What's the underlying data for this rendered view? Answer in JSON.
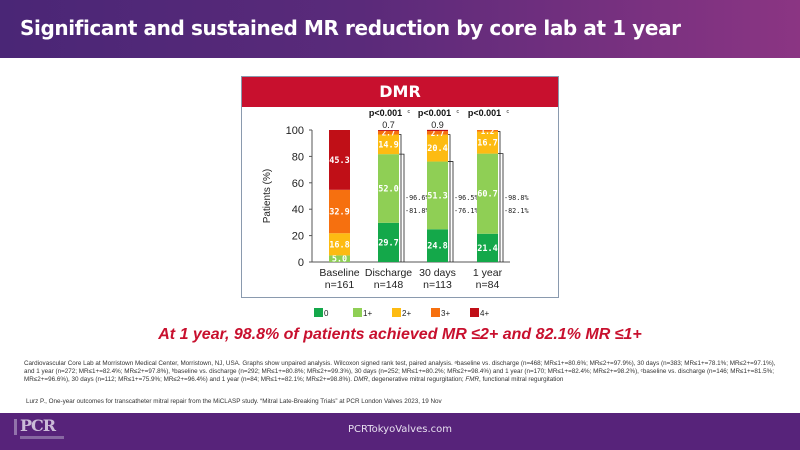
{
  "header": {
    "title": "Significant and sustained MR reduction by core lab at 1 year"
  },
  "chart_data": {
    "type": "bar",
    "stacked": true,
    "title": "DMR",
    "ylabel": "Patients (%)",
    "xlabel": "",
    "ylim": [
      0,
      100
    ],
    "yticks": [
      0,
      20,
      40,
      60,
      80,
      100
    ],
    "categories": [
      "Baseline",
      "Discharge",
      "30 days",
      "1 year"
    ],
    "category_n": [
      "n=161",
      "n=148",
      "n=113",
      "n=84"
    ],
    "series": [
      {
        "name": "0",
        "color": "#14a84a",
        "values": [
          0,
          29.7,
          24.8,
          21.4
        ]
      },
      {
        "name": "1+",
        "color": "#8fcf55",
        "values": [
          5.0,
          52.0,
          51.3,
          60.7
        ]
      },
      {
        "name": "2+",
        "color": "#fdbb12",
        "values": [
          16.8,
          14.9,
          20.4,
          16.7
        ]
      },
      {
        "name": "3+",
        "color": "#f6700f",
        "values": [
          32.9,
          2.7,
          2.7,
          1.2
        ]
      },
      {
        "name": "4+",
        "color": "#c00f17",
        "values": [
          45.3,
          0.7,
          0.9,
          0
        ]
      }
    ],
    "data_labels": [
      [
        "",
        "5.0",
        "16.8",
        "32.9",
        "45.3"
      ],
      [
        "29.7",
        "52.0",
        "14.9",
        "2.7",
        "0.7"
      ],
      [
        "24.8",
        "51.3",
        "20.4",
        "2.7",
        "0.9"
      ],
      [
        "21.4",
        "60.7",
        "16.7",
        "1.2",
        ""
      ]
    ],
    "p_values": [
      "",
      "p<0.001",
      "p<0.001",
      "p<0.001"
    ],
    "p_value_superscript": "c",
    "brackets": [
      null,
      {
        "le2": "96.6%",
        "le1": "81.8%"
      },
      {
        "le2": "96.5%",
        "le1": "76.1%"
      },
      {
        "le2": "98.8%",
        "le1": "82.1%"
      }
    ],
    "legend": {
      "position": "bottom",
      "entries": [
        "0",
        "1+",
        "2+",
        "3+",
        "4+"
      ]
    },
    "grid": false
  },
  "statement": "At 1 year, 98.8% of patients achieved MR ≤2+ and 82.1% MR ≤1+",
  "footnote": {
    "part1": "Cardiovascular Core Lab at Morristown Medical Center, Morristown, NJ, USA. Graphs show unpaired analysis. Wilcoxon signed rank test, paired analysis. ᵃbaseline vs. discharge (n=468; MR≤1+=80.6%; MR≤2+=97.9%), 30 days (n=383; MR≤1+=78.1%; MR≤2+=97.1%), and 1 year (n=272; MR≤1+=82.4%; MR≤2+=97.8%), ᵇbaseline vs. discharge (n=292; MR≤1+=80.8%; MR≤2+=99.3%), 30 days (n=252; MR≤1+=80.2%; MR≤2+=98.4%) and 1 year (n=170; MR≤1+=82.4%; MR≤2+=98.2%), ᶜbaseline vs. discharge (n=146; MR≤1+=81.5%; MR≤2+=96.6%), 30 days (n=112; MR≤1+=75.9%; MR≤2+=96.4%) and 1 year (n=84; MR≤1+=82.1%; MR≤2+=98.8%). ",
    "dmr_abbr": "DMR",
    "dmr_def": ", degenerative mitral regurgitation; ",
    "fmr_abbr": "FMR",
    "fmr_def": ", functional mitral regurgitation"
  },
  "reference": "Lurz P., One-year outcomes for transcatheter mitral repair from the MiCLASP study. “Mitral Late-Breaking Trials” at PCR London Valves 2023, 19 Nov",
  "footer": {
    "logo_text": "PCR",
    "url": "PCRTokyoValves.com"
  }
}
